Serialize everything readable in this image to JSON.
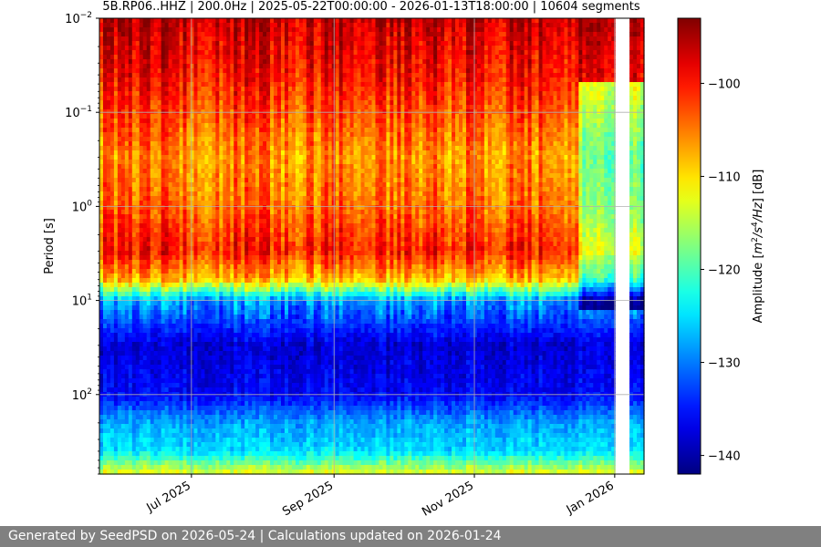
{
  "chart_data": {
    "type": "heatmap",
    "title": "5B.RP06..HHZ | 200.0Hz | 2025-05-22T00:00:00 - 2026-01-13T18:00:00 | 10604 segments",
    "ylabel": "Period [s]",
    "xlabel": "",
    "colorbar_label": "Amplitude [m²/s⁴/Hz] [dB]",
    "colorbar_label_parts": {
      "prefix": "Amplitude [",
      "m": "m",
      "m_exp": "2",
      "mid": "/s",
      "s_exp": "4",
      "tail": "/Hz",
      "suffix": "] [dB]"
    },
    "x_range": [
      "2025-05-22",
      "2026-01-13T18:00:00"
    ],
    "x_ticks": [
      {
        "date": "2025-07-01",
        "label": "Jul 2025"
      },
      {
        "date": "2025-09-01",
        "label": "Sep 2025"
      },
      {
        "date": "2025-11-01",
        "label": "Nov 2025"
      },
      {
        "date": "2026-01-01",
        "label": "Jan 2026"
      }
    ],
    "y_scale": "log",
    "y_inverted": true,
    "y_range_period_s": [
      0.01,
      700
    ],
    "y_ticks": [
      {
        "value": 0.01,
        "base": "10",
        "exp": "−2"
      },
      {
        "value": 0.1,
        "base": "10",
        "exp": "−1"
      },
      {
        "value": 1,
        "base": "10",
        "exp": "0"
      },
      {
        "value": 10,
        "base": "10",
        "exp": "1"
      },
      {
        "value": 100,
        "base": "10",
        "exp": "2"
      }
    ],
    "colorbar": {
      "colormap": "jet",
      "range_db": [
        -142,
        -93
      ],
      "ticks": [
        {
          "value": -100,
          "label": "−100"
        },
        {
          "value": -110,
          "label": "−110"
        },
        {
          "value": -120,
          "label": "−120"
        },
        {
          "value": -130,
          "label": "−130"
        },
        {
          "value": -140,
          "label": "−140"
        }
      ]
    },
    "grid": true,
    "data_gaps": [
      "2026-01-01 to 2026-01-07"
    ],
    "approx_profile_db": [
      {
        "period_s": 0.01,
        "db": -96
      },
      {
        "period_s": 0.05,
        "db": -100
      },
      {
        "period_s": 0.3,
        "db": -106
      },
      {
        "period_s": 1,
        "db": -104
      },
      {
        "period_s": 3,
        "db": -100
      },
      {
        "period_s": 6,
        "db": -108
      },
      {
        "period_s": 10,
        "db": -128
      },
      {
        "period_s": 30,
        "db": -138
      },
      {
        "period_s": 100,
        "db": -136
      },
      {
        "period_s": 200,
        "db": -128
      },
      {
        "period_s": 400,
        "db": -125
      },
      {
        "period_s": 700,
        "db": -112
      }
    ]
  },
  "footer": {
    "text": "Generated by SeedPSD on 2026-05-24 | Calculations updated on 2026-01-24"
  }
}
